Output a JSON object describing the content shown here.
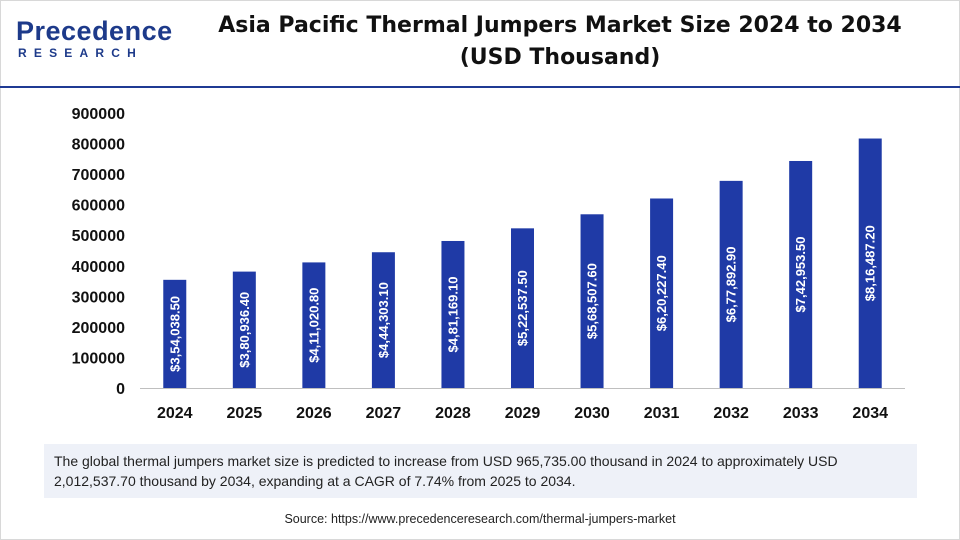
{
  "logo": {
    "top": "Precedence",
    "bottom": "RESEARCH"
  },
  "header": {
    "title_line1": "Asia Pacific Thermal Jumpers Market Size 2024 to 2034",
    "title_line2": "(USD Thousand)"
  },
  "colors": {
    "bar": "#1f3aa6",
    "accent": "#1f3a93",
    "note_bg": "#eef1f8"
  },
  "chart_data": {
    "type": "bar",
    "categories": [
      "2024",
      "2025",
      "2026",
      "2027",
      "2028",
      "2029",
      "2030",
      "2031",
      "2032",
      "2033",
      "2034"
    ],
    "values": [
      354038.5,
      380936.4,
      411020.8,
      444303.1,
      481169.1,
      522537.5,
      568507.6,
      620227.4,
      677892.9,
      742953.5,
      816487.2
    ],
    "data_labels": [
      "$3,54,038.50",
      "$3,80,936.40",
      "$4,11,020.80",
      "$4,44,303.10",
      "$4,81,169.10",
      "$5,22,537.50",
      "$5,68,507.60",
      "$6,20,227.40",
      "$6,77,892.90",
      "$7,42,953.50",
      "$8,16,487.20"
    ],
    "yticks": [
      "0",
      "100000",
      "200000",
      "300000",
      "400000",
      "500000",
      "600000",
      "700000",
      "800000",
      "900000"
    ],
    "ylim": [
      0,
      900000
    ],
    "title": "Asia Pacific Thermal Jumpers Market Size 2024 to 2034 (USD Thousand)",
    "xlabel": "",
    "ylabel": "",
    "grid": false
  },
  "note": "The global thermal jumpers market size is predicted to increase from USD 965,735.00 thousand in 2024 to approximately USD 2,012,537.70 thousand by 2034, expanding at a CAGR of 7.74% from 2025 to 2034.",
  "source": "Source: https://www.precedenceresearch.com/thermal-jumpers-market"
}
